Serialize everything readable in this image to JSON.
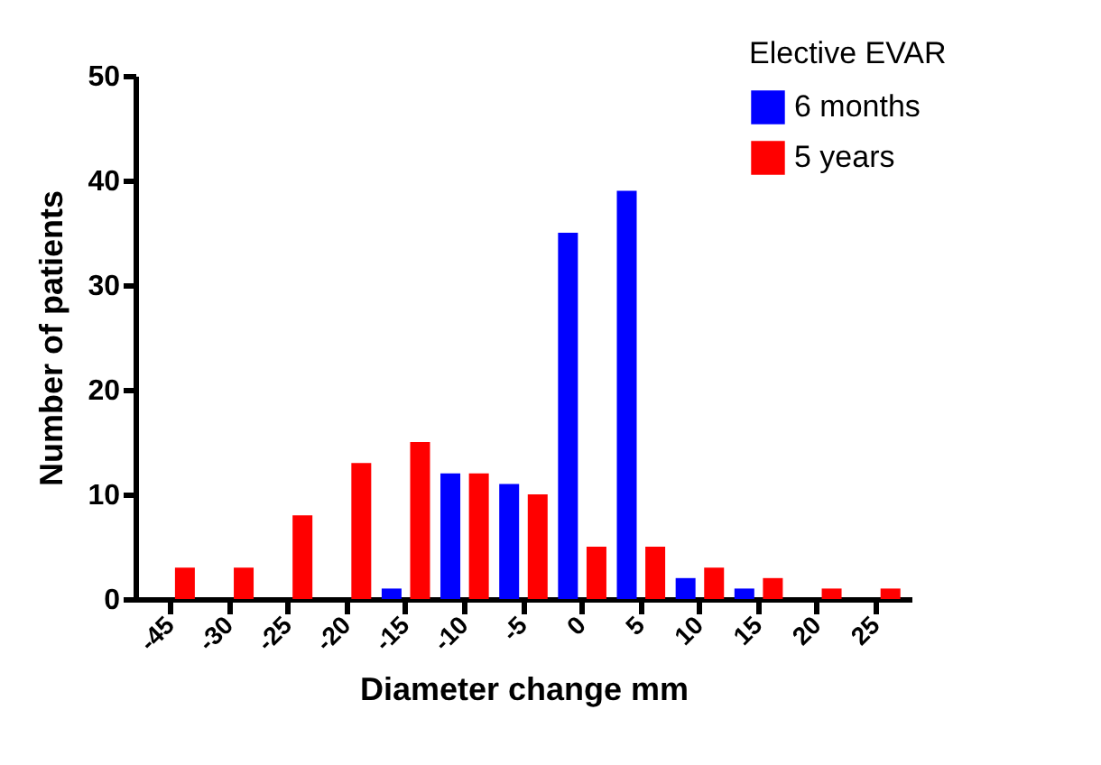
{
  "chart_data": {
    "type": "bar",
    "xlabel": "Diameter change mm",
    "ylabel": "Number of patients",
    "legend_title": "Elective EVAR",
    "categories": [
      "-45",
      "-30",
      "-25",
      "-20",
      "-15",
      "-10",
      "-5",
      "0",
      "5",
      "10",
      "15",
      "20",
      "25"
    ],
    "series": [
      {
        "name": "6 months",
        "color": "#0000ff",
        "values": [
          0,
          0,
          0,
          0,
          1,
          12,
          11,
          35,
          39,
          2,
          1,
          0,
          0
        ]
      },
      {
        "name": "5 years",
        "color": "#ff0000",
        "values": [
          3,
          3,
          8,
          13,
          15,
          12,
          10,
          5,
          5,
          3,
          2,
          1,
          1
        ]
      }
    ],
    "ylim": [
      0,
      50
    ],
    "yticks": [
      0,
      10,
      20,
      30,
      40,
      50
    ],
    "grid": false,
    "legend": "top right"
  }
}
